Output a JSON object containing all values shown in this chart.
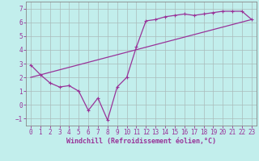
{
  "xlabel": "Windchill (Refroidissement éolien,°C)",
  "bg_color": "#c2eeec",
  "line_color": "#993399",
  "grid_color": "#aabbbb",
  "xlim": [
    -0.5,
    23.5
  ],
  "ylim": [
    -1.5,
    7.5
  ],
  "xticks": [
    0,
    1,
    2,
    3,
    4,
    5,
    6,
    7,
    8,
    9,
    10,
    11,
    12,
    13,
    14,
    15,
    16,
    17,
    18,
    19,
    20,
    21,
    22,
    23
  ],
  "yticks": [
    -1,
    0,
    1,
    2,
    3,
    4,
    5,
    6,
    7
  ],
  "line1_x": [
    0,
    1,
    2,
    3,
    4,
    5,
    6,
    7,
    8,
    9,
    10,
    11,
    12,
    13,
    14,
    15,
    16,
    17,
    18,
    19,
    20,
    21,
    22,
    23
  ],
  "line1_y": [
    2.9,
    2.2,
    1.6,
    1.3,
    1.4,
    1.0,
    -0.4,
    0.5,
    -1.1,
    1.3,
    2.0,
    4.2,
    6.1,
    6.2,
    6.4,
    6.5,
    6.6,
    6.5,
    6.6,
    6.7,
    6.8,
    6.8,
    6.8,
    6.2
  ],
  "line2_x": [
    0,
    23
  ],
  "line2_y": [
    2.0,
    6.2
  ],
  "xlabel_fontsize": 6,
  "tick_fontsize": 5.5,
  "xlabel_color": "#993399",
  "spine_color": "#888888"
}
